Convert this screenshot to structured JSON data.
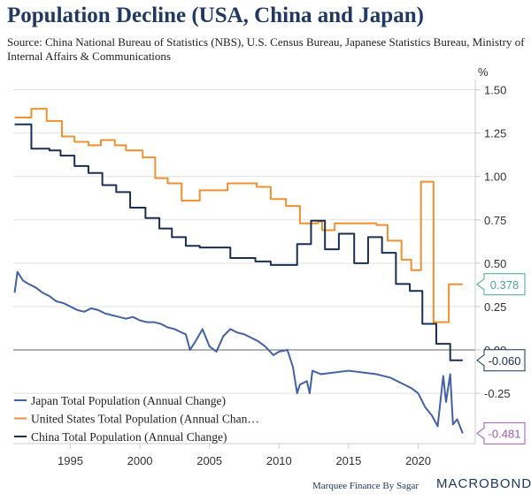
{
  "chart_data": {
    "type": "line",
    "title": "Population Decline (USA, China and Japan)",
    "subtitle": "Source: China National Bureau of Statistics (NBS), U.S. Census Bureau, Japanese Statistics Bureau, Ministry of Internal Affairs & Communications",
    "ylabel": "%",
    "ylim": [
      -0.53,
      1.57
    ],
    "xlim": [
      1990.9,
      2024.1
    ],
    "yticks": [
      "1.50",
      "1.25",
      "1.00",
      "0.75",
      "0.50",
      "0.25",
      "0.00",
      "-0.25"
    ],
    "ytick_values": [
      1.5,
      1.25,
      1.0,
      0.75,
      0.5,
      0.25,
      0.0,
      -0.25
    ],
    "xticks": [
      "1995",
      "2000",
      "2005",
      "2010",
      "2015",
      "2020"
    ],
    "legend_position": "bottom-left",
    "series": [
      {
        "name": "Japan Total Population (Annual Change)",
        "color": "#4161a8",
        "step": false,
        "last_label": "-0.481",
        "label_color": "#9b59b6",
        "x": [
          1991,
          1991.2,
          1991.6,
          1992,
          1992.5,
          1993,
          1993.5,
          1994,
          1994.5,
          1995,
          1995.5,
          1996,
          1996.5,
          1997,
          1997.5,
          1998,
          1998.5,
          1999,
          1999.5,
          2000,
          2000.5,
          2001,
          2001.5,
          2002,
          2002.5,
          2003,
          2003.3,
          2003.6,
          2004,
          2004.5,
          2005,
          2005.5,
          2006,
          2006.5,
          2007,
          2007.5,
          2008,
          2008.5,
          2009,
          2009.6,
          2010,
          2010.6,
          2011,
          2011.3,
          2011.5,
          2012,
          2012.2,
          2012.4,
          2013,
          2014,
          2015,
          2016,
          2017,
          2018,
          2018.5,
          2019,
          2019.5,
          2020,
          2020.5,
          2021,
          2021.4,
          2021.8,
          2022,
          2022.3,
          2022.5,
          2022.8,
          2023.2
        ],
        "y": [
          0.33,
          0.45,
          0.4,
          0.38,
          0.36,
          0.33,
          0.31,
          0.28,
          0.27,
          0.25,
          0.23,
          0.22,
          0.24,
          0.23,
          0.21,
          0.2,
          0.19,
          0.18,
          0.19,
          0.17,
          0.16,
          0.16,
          0.15,
          0.13,
          0.12,
          0.1,
          0.09,
          0.0,
          0.05,
          0.12,
          0.02,
          -0.01,
          0.08,
          0.12,
          0.1,
          0.09,
          0.07,
          0.05,
          0.02,
          -0.03,
          -0.01,
          0.0,
          -0.1,
          -0.25,
          -0.2,
          -0.18,
          -0.25,
          -0.12,
          -0.14,
          -0.13,
          -0.12,
          -0.13,
          -0.14,
          -0.16,
          -0.18,
          -0.2,
          -0.22,
          -0.25,
          -0.33,
          -0.38,
          -0.44,
          -0.15,
          -0.3,
          -0.14,
          -0.43,
          -0.4,
          -0.481
        ]
      },
      {
        "name": "United States Total Population (Annual Chan…",
        "color": "#f0902e",
        "step": true,
        "last_label": "0.378",
        "label_color": "#4aab8c",
        "x": [
          1991,
          1992.2,
          1993.3,
          1994.4,
          1995.3,
          1996.3,
          1996.8,
          1997.2,
          1998.2,
          1999,
          2000.2,
          2001.1,
          2002,
          2003,
          2004.3,
          2006.3,
          2008.4,
          2009.4,
          2010.5,
          2011.5,
          2012.8,
          2013.1,
          2014,
          2017,
          2017.8,
          2018.8,
          2019.5,
          2020.2,
          2021.1,
          2022.2,
          2023.2
        ],
        "y": [
          1.34,
          1.39,
          1.32,
          1.23,
          1.2,
          1.18,
          1.18,
          1.21,
          1.18,
          1.15,
          1.11,
          0.99,
          0.96,
          0.86,
          0.92,
          0.96,
          0.94,
          0.87,
          0.83,
          0.73,
          0.74,
          0.69,
          0.73,
          0.72,
          0.63,
          0.52,
          0.46,
          0.97,
          0.16,
          0.378,
          0.378
        ]
      },
      {
        "name": "China Total Population (Annual Change)",
        "color": "#1b2f55",
        "step": true,
        "last_label": "-0.060",
        "label_color": "#1b2f55",
        "x": [
          1991,
          1992.2,
          1993.5,
          1994.3,
          1995.3,
          1996.3,
          1997.3,
          1998.3,
          1999.3,
          2000.4,
          2001.4,
          2002.3,
          2003.3,
          2004.3,
          2006.5,
          2008.3,
          2009.4,
          2011.3,
          2012.3,
          2013.3,
          2014.3,
          2015.4,
          2016.4,
          2017.4,
          2018.4,
          2019.4,
          2020.3,
          2021.3,
          2022.3,
          2023.2
        ],
        "y": [
          1.3,
          1.16,
          1.15,
          1.12,
          1.06,
          1.02,
          0.95,
          0.91,
          0.82,
          0.76,
          0.7,
          0.65,
          0.6,
          0.59,
          0.53,
          0.51,
          0.49,
          0.61,
          0.745,
          0.58,
          0.67,
          0.5,
          0.65,
          0.56,
          0.38,
          0.34,
          0.15,
          0.035,
          -0.06,
          -0.06
        ]
      }
    ]
  },
  "footer": {
    "credit": "Marquee Finance By Sagar",
    "brand": "MACROBOND"
  }
}
